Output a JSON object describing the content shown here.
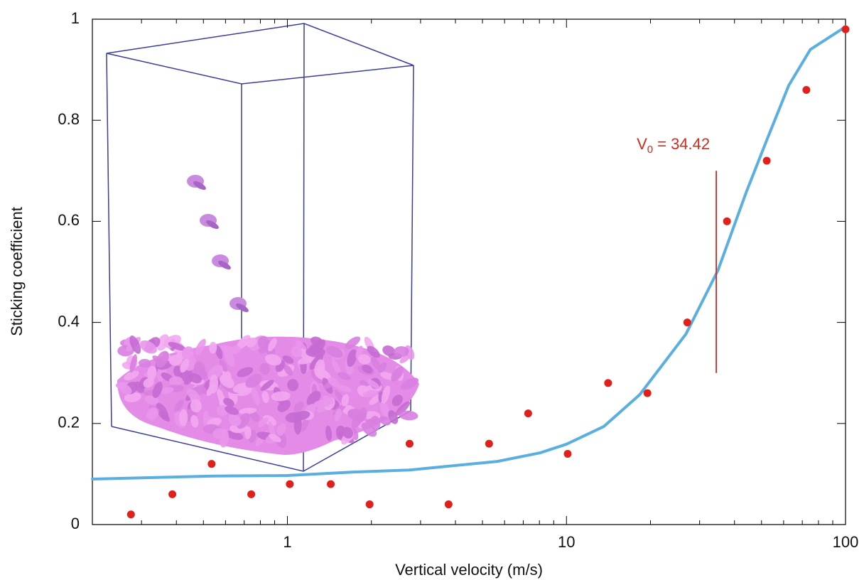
{
  "chart_data": {
    "type": "scatter",
    "x_label": "Vertical velocity (m/s)",
    "y_label": "Sticking coefficient",
    "log_x": true,
    "grid": false,
    "xlim": [
      0.2,
      100
    ],
    "ylim": [
      0,
      1
    ],
    "xticks": [
      1,
      10,
      100
    ],
    "xminorticks": [
      0.3,
      0.4,
      0.5,
      0.6,
      0.7,
      0.8,
      0.9,
      2,
      3,
      4,
      5,
      6,
      7,
      8,
      9,
      20,
      30,
      40,
      50,
      60,
      70,
      80,
      90
    ],
    "yticks": [
      0,
      0.2,
      0.4,
      0.6,
      0.8,
      1
    ],
    "series": [
      {
        "type": "scatter",
        "color": "#e0201b",
        "x": [
          0.275,
          0.387,
          0.535,
          0.742,
          1.02,
          1.43,
          1.97,
          2.74,
          3.78,
          5.28,
          7.29,
          10.1,
          14.1,
          19.5,
          27.1,
          37.6,
          52.2,
          72.4,
          100
        ],
        "values": [
          0.02,
          0.06,
          0.12,
          0.06,
          0.08,
          0.08,
          0.04,
          0.16,
          0.04,
          0.16,
          0.22,
          0.14,
          0.28,
          0.26,
          0.4,
          0.6,
          0.72,
          0.86,
          0.98
        ]
      },
      {
        "type": "line",
        "color": "#5aafe0",
        "x": [
          0.2,
          0.544,
          1,
          1.75,
          2.74,
          5.66,
          8.05,
          10,
          13.6,
          18.3,
          26.8,
          34.9,
          44.1,
          52.5,
          62.6,
          74.8,
          100
        ],
        "values": [
          0.09,
          0.096,
          0.097,
          0.104,
          0.108,
          0.125,
          0.142,
          0.159,
          0.194,
          0.257,
          0.377,
          0.503,
          0.658,
          0.764,
          0.869,
          0.94,
          0.985
        ]
      }
    ],
    "annotation": {
      "label": "V",
      "subscript": "0",
      "text": "= 34.42",
      "x": 34.42,
      "color": "#d42a1e"
    }
  }
}
